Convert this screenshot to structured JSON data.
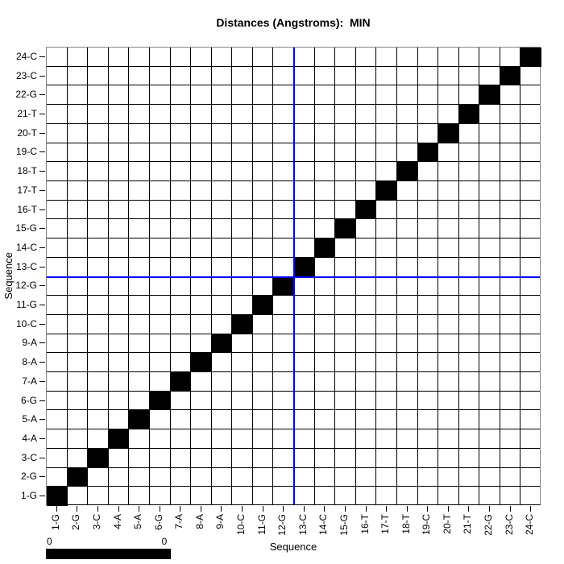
{
  "title": "Distances (Angstroms):  MIN",
  "chart_data": {
    "type": "heatmap",
    "title": "Distances (Angstroms):  MIN",
    "xlabel": "Sequence",
    "ylabel": "Sequence",
    "categories": [
      "1-G",
      "2-G",
      "3-C",
      "4-A",
      "5-A",
      "6-G",
      "7-A",
      "8-A",
      "9-A",
      "10-C",
      "11-G",
      "12-G",
      "13-C",
      "14-C",
      "15-G",
      "16-T",
      "17-T",
      "18-T",
      "19-C",
      "20-T",
      "21-T",
      "22-G",
      "23-C",
      "24-C"
    ],
    "grid": true,
    "fill_color": "#000000",
    "filled_cells": [
      [
        1,
        1
      ],
      [
        2,
        2
      ],
      [
        3,
        3
      ],
      [
        4,
        4
      ],
      [
        5,
        5
      ],
      [
        6,
        6
      ],
      [
        7,
        7
      ],
      [
        8,
        8
      ],
      [
        9,
        9
      ],
      [
        10,
        10
      ],
      [
        11,
        11
      ],
      [
        12,
        12
      ],
      [
        13,
        13
      ],
      [
        14,
        14
      ],
      [
        15,
        15
      ],
      [
        16,
        16
      ],
      [
        17,
        17
      ],
      [
        18,
        18
      ],
      [
        19,
        19
      ],
      [
        20,
        20
      ],
      [
        21,
        21
      ],
      [
        22,
        22
      ],
      [
        23,
        23
      ],
      [
        24,
        24
      ]
    ],
    "crosshair": {
      "boundary_after_index": 12,
      "between_labels": [
        "12-G",
        "13-C"
      ],
      "color": "#0000ff"
    },
    "colorbar": {
      "min_label": "0",
      "max_label": "0",
      "bar_color": "#000000"
    }
  }
}
